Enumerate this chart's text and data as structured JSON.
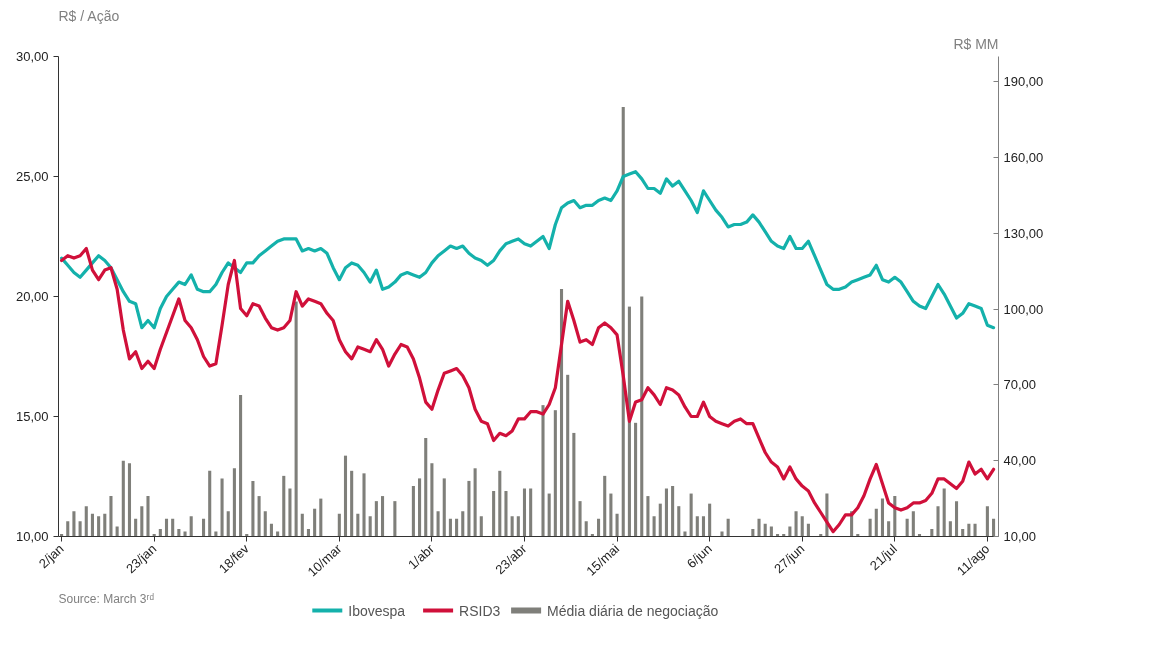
{
  "chart_data": {
    "type": "line",
    "ylabel": "R$ / Ação",
    "y2label": "R$ MM",
    "categories": [
      "2/jan",
      null,
      null,
      null,
      null,
      null,
      null,
      null,
      null,
      null,
      null,
      null,
      null,
      null,
      null,
      "23/jan",
      null,
      null,
      null,
      null,
      null,
      null,
      null,
      null,
      null,
      null,
      null,
      null,
      null,
      null,
      "18/fev",
      null,
      null,
      null,
      null,
      null,
      null,
      null,
      null,
      null,
      null,
      null,
      null,
      null,
      null,
      "10/mar",
      null,
      null,
      null,
      null,
      null,
      null,
      null,
      null,
      null,
      null,
      null,
      null,
      null,
      null,
      "1/abr",
      null,
      null,
      null,
      null,
      null,
      null,
      null,
      null,
      null,
      null,
      null,
      null,
      null,
      null,
      "23/abr",
      null,
      null,
      null,
      null,
      null,
      null,
      null,
      null,
      null,
      null,
      null,
      null,
      null,
      null,
      "15/mai",
      null,
      null,
      null,
      null,
      null,
      null,
      null,
      null,
      null,
      null,
      null,
      null,
      null,
      null,
      "6/jun",
      null,
      null,
      null,
      null,
      null,
      null,
      null,
      null,
      null,
      null,
      null,
      null,
      null,
      null,
      "27/jun",
      null,
      null,
      null,
      null,
      null,
      null,
      null,
      null,
      null,
      null,
      null,
      null,
      null,
      null,
      "21/jul",
      null,
      null,
      null,
      null,
      null,
      null,
      null,
      null,
      null,
      null,
      null,
      null,
      null,
      null,
      "11/ago",
      null
    ],
    "ylim": [
      10,
      30
    ],
    "yticks": [
      {
        "value": 10,
        "label": "10,00"
      },
      {
        "value": 15,
        "label": "15,00"
      },
      {
        "value": 20,
        "label": "20,00"
      },
      {
        "value": 25,
        "label": "25,00"
      },
      {
        "value": 30,
        "label": "30,00"
      }
    ],
    "y2lim": [
      10,
      200
    ],
    "y2ticks": [
      {
        "value": 10,
        "label": "10,00"
      },
      {
        "value": 40,
        "label": "40,00"
      },
      {
        "value": 70,
        "label": "70,00"
      },
      {
        "value": 100,
        "label": "100,00"
      },
      {
        "value": 130,
        "label": "130,00"
      },
      {
        "value": 160,
        "label": "160,00"
      },
      {
        "value": 190,
        "label": "190,00"
      }
    ],
    "grid": false,
    "legend": "bottom",
    "annotations": [
      "Source: March 3ʳᵈ"
    ],
    "series": [
      {
        "name": "Média diária de negociação",
        "type": "bar",
        "axis": "y2",
        "color": "#7f7f7a",
        "values": [
          11,
          16,
          20,
          16,
          22,
          19,
          18,
          19,
          26,
          14,
          40,
          39,
          17,
          22,
          26,
          11,
          13,
          17,
          17,
          13,
          12,
          18,
          null,
          17,
          36,
          12,
          33,
          20,
          37,
          66,
          11,
          32,
          26,
          20,
          15,
          12,
          34,
          29,
          103,
          19,
          13,
          21,
          25,
          null,
          null,
          19,
          42,
          36,
          19,
          35,
          18,
          24,
          26,
          null,
          24,
          null,
          null,
          30,
          33,
          49,
          39,
          20,
          33,
          17,
          17,
          20,
          32,
          37,
          18,
          null,
          28,
          36,
          28,
          18,
          18,
          29,
          29,
          null,
          62,
          27,
          60,
          108,
          74,
          51,
          24,
          16,
          11,
          17,
          34,
          27,
          19,
          180,
          101,
          55,
          105,
          26,
          18,
          23,
          29,
          30,
          22,
          12,
          27,
          18,
          18,
          23,
          null,
          12,
          17,
          null,
          null,
          null,
          13,
          17,
          15,
          14,
          11,
          11,
          14,
          20,
          18,
          15,
          null,
          11,
          27,
          null,
          null,
          null,
          20,
          11,
          null,
          17,
          21,
          25,
          16,
          26,
          null,
          17,
          20,
          11,
          null,
          13,
          22,
          29,
          16,
          24,
          13,
          15,
          15,
          null,
          22,
          17
        ]
      },
      {
        "name": "Ibovespa",
        "color": "#14b1ab",
        "values": [
          21.6,
          21.3,
          21.0,
          20.8,
          21.1,
          21.4,
          21.7,
          21.5,
          21.2,
          20.7,
          20.2,
          19.8,
          19.7,
          18.7,
          19.0,
          18.7,
          19.5,
          20.0,
          20.3,
          20.6,
          20.5,
          20.9,
          20.3,
          20.2,
          20.2,
          20.5,
          21.0,
          21.4,
          21.2,
          21.0,
          21.4,
          21.4,
          21.7,
          21.9,
          22.1,
          22.3,
          22.4,
          22.4,
          22.4,
          21.9,
          22.0,
          21.9,
          22.0,
          21.8,
          21.2,
          20.7,
          21.2,
          21.4,
          21.3,
          21.0,
          20.6,
          21.1,
          20.3,
          20.4,
          20.6,
          20.9,
          21.0,
          20.9,
          20.8,
          21.0,
          21.4,
          21.7,
          21.9,
          22.1,
          22.0,
          22.1,
          21.8,
          21.6,
          21.5,
          21.3,
          21.5,
          21.9,
          22.2,
          22.3,
          22.4,
          22.2,
          22.1,
          22.3,
          22.5,
          22.0,
          23.0,
          23.7,
          23.9,
          24.0,
          23.7,
          23.8,
          23.8,
          24.0,
          24.1,
          24.0,
          24.4,
          25.0,
          25.1,
          25.2,
          24.9,
          24.5,
          24.5,
          24.3,
          24.9,
          24.6,
          24.8,
          24.4,
          24.0,
          23.5,
          24.4,
          24.0,
          23.6,
          23.3,
          22.9,
          23.0,
          23.0,
          23.1,
          23.4,
          23.1,
          22.7,
          22.3,
          22.1,
          22.0,
          22.5,
          22.0,
          22.0,
          22.3,
          21.7,
          21.1,
          20.5,
          20.3,
          20.3,
          20.4,
          20.6,
          20.7,
          20.8,
          20.9,
          21.3,
          20.7,
          20.6,
          20.8,
          20.6,
          20.2,
          19.8,
          19.6,
          19.5,
          20.0,
          20.5,
          20.1,
          19.6,
          19.1,
          19.3,
          19.7,
          19.6,
          19.5,
          18.8,
          18.7
        ]
      },
      {
        "name": "RSID3",
        "color": "#d0103a",
        "values": [
          21.5,
          21.7,
          21.6,
          21.7,
          22.0,
          21.1,
          20.7,
          21.1,
          21.2,
          20.3,
          18.6,
          17.4,
          17.7,
          17.0,
          17.3,
          17.0,
          17.8,
          18.5,
          19.2,
          19.9,
          19.0,
          18.7,
          18.2,
          17.5,
          17.1,
          17.2,
          18.8,
          20.5,
          21.5,
          19.5,
          19.2,
          19.7,
          19.6,
          19.1,
          18.7,
          18.6,
          18.7,
          19.0,
          20.2,
          19.6,
          19.9,
          19.8,
          19.7,
          19.3,
          19.0,
          18.2,
          17.7,
          17.4,
          17.9,
          17.8,
          17.7,
          18.2,
          17.8,
          17.1,
          17.6,
          18.0,
          17.9,
          17.4,
          16.6,
          15.6,
          15.3,
          16.1,
          16.8,
          16.9,
          17.0,
          16.7,
          16.2,
          15.3,
          14.8,
          14.7,
          14.0,
          14.3,
          14.2,
          14.4,
          14.9,
          14.9,
          15.2,
          15.2,
          15.1,
          15.5,
          16.2,
          18.0,
          19.8,
          19.0,
          18.1,
          18.2,
          18.0,
          18.7,
          18.9,
          18.7,
          18.4,
          16.7,
          14.8,
          15.6,
          15.7,
          16.2,
          15.9,
          15.5,
          16.2,
          16.1,
          15.9,
          15.4,
          15.0,
          15.0,
          15.6,
          15.0,
          14.8,
          14.7,
          14.6,
          14.8,
          14.9,
          14.7,
          14.7,
          14.1,
          13.5,
          13.1,
          12.9,
          12.4,
          12.9,
          12.4,
          12.1,
          11.9,
          11.4,
          11.0,
          10.6,
          10.2,
          10.5,
          10.9,
          10.9,
          11.2,
          11.7,
          12.4,
          13.0,
          12.2,
          11.4,
          11.2,
          11.1,
          11.2,
          11.4,
          11.4,
          11.5,
          11.8,
          12.4,
          12.4,
          12.2,
          12.0,
          12.3,
          13.1,
          12.6,
          12.8,
          12.4,
          12.8
        ]
      }
    ]
  }
}
